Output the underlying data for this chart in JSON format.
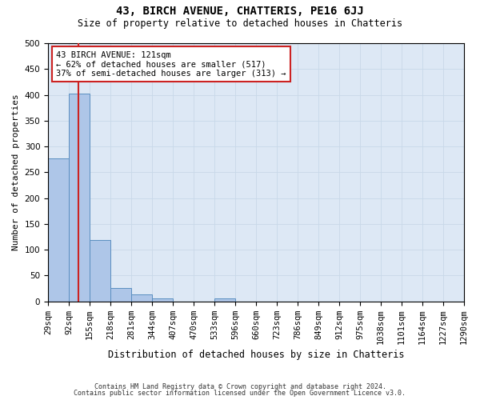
{
  "title": "43, BIRCH AVENUE, CHATTERIS, PE16 6JJ",
  "subtitle": "Size of property relative to detached houses in Chatteris",
  "xlabel": "Distribution of detached houses by size in Chatteris",
  "ylabel": "Number of detached properties",
  "footer_line1": "Contains HM Land Registry data © Crown copyright and database right 2024.",
  "footer_line2": "Contains public sector information licensed under the Open Government Licence v3.0.",
  "bin_labels": [
    "29sqm",
    "92sqm",
    "155sqm",
    "218sqm",
    "281sqm",
    "344sqm",
    "407sqm",
    "470sqm",
    "533sqm",
    "596sqm",
    "660sqm",
    "723sqm",
    "786sqm",
    "849sqm",
    "912sqm",
    "975sqm",
    "1038sqm",
    "1101sqm",
    "1164sqm",
    "1227sqm",
    "1290sqm"
  ],
  "bar_values": [
    277,
    403,
    119,
    26,
    13,
    5,
    0,
    0,
    5,
    0,
    0,
    0,
    0,
    0,
    0,
    0,
    0,
    0,
    0,
    0
  ],
  "bar_color": "#aec6e8",
  "bar_edge_color": "#5a8fc0",
  "property_line_color": "#cc2222",
  "annotation_text": "43 BIRCH AVENUE: 121sqm\n← 62% of detached houses are smaller (517)\n37% of semi-detached houses are larger (313) →",
  "annotation_box_color": "#ffffff",
  "annotation_box_edge": "#cc2222",
  "ylim": [
    0,
    500
  ],
  "yticks": [
    0,
    50,
    100,
    150,
    200,
    250,
    300,
    350,
    400,
    450,
    500
  ],
  "background_color": "#ffffff",
  "grid_color": "#c8d8e8",
  "title_fontsize": 10,
  "subtitle_fontsize": 8.5,
  "ylabel_fontsize": 8,
  "xlabel_fontsize": 8.5,
  "tick_fontsize": 7.5,
  "annot_fontsize": 7.5
}
